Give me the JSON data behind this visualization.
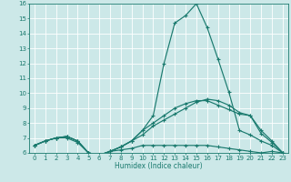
{
  "xlabel": "Humidex (Indice chaleur)",
  "background_color": "#cce8e8",
  "grid_color": "#ffffff",
  "line_color": "#1a7a6e",
  "xlim": [
    -0.5,
    23.5
  ],
  "ylim": [
    6,
    16
  ],
  "yticks": [
    6,
    7,
    8,
    9,
    10,
    11,
    12,
    13,
    14,
    15,
    16
  ],
  "xticks": [
    0,
    1,
    2,
    3,
    4,
    5,
    6,
    7,
    8,
    9,
    10,
    11,
    12,
    13,
    14,
    15,
    16,
    17,
    18,
    19,
    20,
    21,
    22,
    23
  ],
  "line1_x": [
    0,
    1,
    2,
    3,
    4,
    5,
    6,
    7,
    8,
    9,
    10,
    11,
    12,
    13,
    14,
    15,
    16,
    17,
    18,
    19,
    20,
    21,
    22,
    23
  ],
  "line1_y": [
    6.5,
    6.8,
    7.0,
    7.0,
    6.7,
    6.0,
    5.85,
    6.1,
    6.2,
    6.3,
    6.5,
    6.5,
    6.5,
    6.5,
    6.5,
    6.5,
    6.5,
    6.4,
    6.3,
    6.2,
    6.1,
    6.0,
    6.1,
    6.0
  ],
  "line2_x": [
    0,
    1,
    2,
    3,
    4,
    5,
    6,
    7,
    8,
    9,
    10,
    11,
    12,
    13,
    14,
    15,
    16,
    17,
    18,
    19,
    20,
    21,
    22,
    23
  ],
  "line2_y": [
    6.5,
    6.8,
    7.0,
    7.1,
    6.8,
    6.0,
    5.85,
    6.1,
    6.4,
    6.8,
    7.5,
    8.0,
    8.5,
    9.0,
    9.3,
    9.5,
    9.5,
    9.2,
    8.9,
    8.6,
    8.5,
    7.5,
    6.8,
    6.0
  ],
  "line3_x": [
    0,
    1,
    2,
    3,
    4,
    5,
    6,
    7,
    8,
    9,
    10,
    11,
    12,
    13,
    14,
    15,
    16,
    17,
    18,
    19,
    20,
    21,
    22,
    23
  ],
  "line3_y": [
    6.5,
    6.8,
    7.0,
    7.1,
    6.8,
    6.0,
    5.85,
    6.1,
    6.4,
    6.8,
    7.5,
    8.5,
    12.0,
    14.7,
    15.2,
    16.0,
    14.4,
    12.3,
    10.1,
    7.5,
    7.2,
    6.8,
    6.5,
    6.0
  ],
  "line4_x": [
    0,
    1,
    2,
    3,
    4,
    5,
    6,
    7,
    8,
    9,
    10,
    11,
    12,
    13,
    14,
    15,
    16,
    17,
    18,
    19,
    20,
    21,
    22,
    23
  ],
  "line4_y": [
    6.5,
    6.8,
    7.0,
    7.1,
    6.8,
    6.0,
    5.85,
    6.1,
    6.4,
    6.8,
    7.2,
    7.8,
    8.2,
    8.6,
    9.0,
    9.4,
    9.6,
    9.5,
    9.2,
    8.7,
    8.5,
    7.3,
    6.7,
    6.0
  ]
}
